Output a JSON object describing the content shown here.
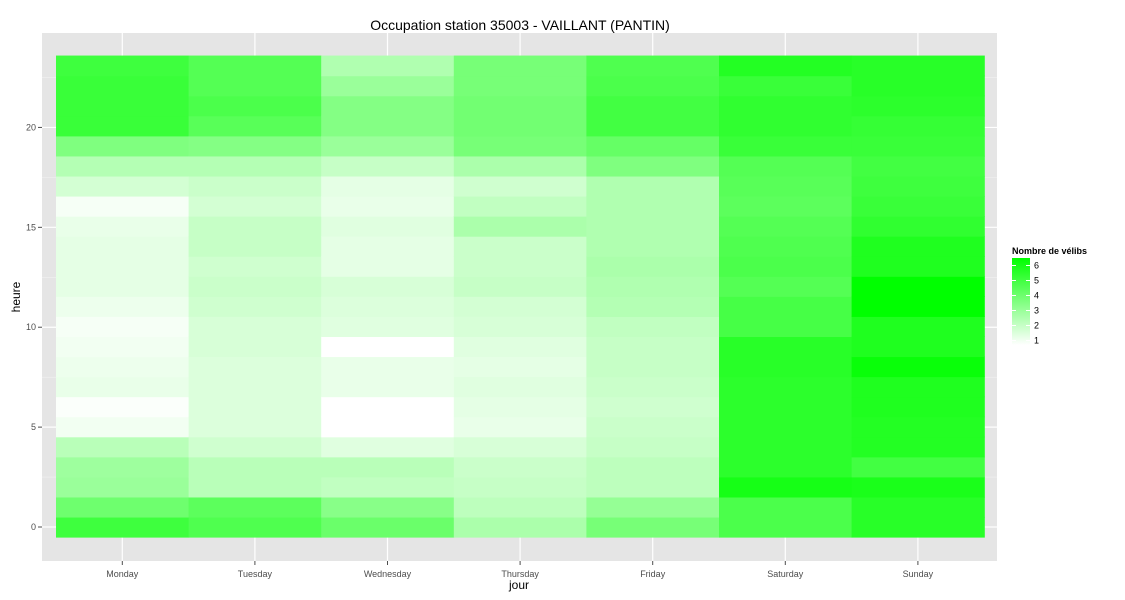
{
  "chart_data": {
    "type": "heatmap",
    "title": "Occupation station 35003 - VAILLANT (PANTIN)",
    "xlabel": "jour",
    "ylabel": "heure",
    "x_categories": [
      "Monday",
      "Tuesday",
      "Wednesday",
      "Thursday",
      "Friday",
      "Saturday",
      "Sunday"
    ],
    "y_hours": [
      0,
      1,
      2,
      3,
      4,
      5,
      6,
      7,
      8,
      9,
      10,
      11,
      12,
      13,
      14,
      15,
      16,
      17,
      18,
      19,
      20,
      21,
      22,
      23
    ],
    "y_ticks": [
      0,
      5,
      10,
      15,
      20
    ],
    "ylim": [
      -0.5,
      23.5
    ],
    "grid": true,
    "legend": {
      "title": "Nombre de vélibs",
      "position": "right",
      "min": 0.7,
      "max": 6.5,
      "ticks": [
        1,
        2,
        3,
        4,
        5,
        6
      ],
      "low_color": "#ffffff",
      "high_color": "#00ff00"
    },
    "series": [
      {
        "name": "Monday",
        "values": [
          5.1,
          4.0,
          3.0,
          2.9,
          2.3,
          1.0,
          0.8,
          1.2,
          1.1,
          1.0,
          0.9,
          1.1,
          1.3,
          1.3,
          1.3,
          1.2,
          0.9,
          1.7,
          2.4,
          3.6,
          5.2,
          5.2,
          5.2,
          5.1
        ]
      },
      {
        "name": "Tuesday",
        "values": [
          4.7,
          4.4,
          2.3,
          2.3,
          1.8,
          1.5,
          1.5,
          1.5,
          1.5,
          1.6,
          1.6,
          1.8,
          1.9,
          1.8,
          2.0,
          2.0,
          1.7,
          1.9,
          2.4,
          3.5,
          4.5,
          4.8,
          4.6,
          4.6
        ]
      },
      {
        "name": "Wednesday",
        "values": [
          4.1,
          3.4,
          2.1,
          2.3,
          1.4,
          0.7,
          0.7,
          1.2,
          1.2,
          0.7,
          1.4,
          1.5,
          1.6,
          1.3,
          1.3,
          1.4,
          1.2,
          1.3,
          2.0,
          3.0,
          3.5,
          3.5,
          3.0,
          2.5
        ]
      },
      {
        "name": "Thursday",
        "values": [
          2.6,
          2.2,
          2.0,
          1.9,
          1.6,
          1.2,
          1.3,
          1.4,
          1.3,
          1.4,
          1.6,
          1.7,
          2.0,
          1.9,
          1.9,
          2.6,
          2.1,
          1.8,
          2.6,
          3.8,
          3.9,
          3.9,
          3.8,
          3.8
        ]
      },
      {
        "name": "Friday",
        "values": [
          3.8,
          3.1,
          2.2,
          2.2,
          2.0,
          1.9,
          1.8,
          1.9,
          2.0,
          2.0,
          2.1,
          2.4,
          2.5,
          2.6,
          2.5,
          2.5,
          2.5,
          2.5,
          3.6,
          4.2,
          5.0,
          5.0,
          4.8,
          4.7
        ]
      },
      {
        "name": "Saturday",
        "values": [
          4.8,
          4.8,
          6.0,
          5.5,
          5.5,
          5.5,
          5.5,
          5.5,
          5.6,
          5.6,
          4.9,
          4.9,
          4.6,
          4.8,
          4.7,
          4.6,
          4.4,
          4.5,
          4.6,
          5.2,
          5.4,
          5.4,
          5.2,
          5.7
        ]
      },
      {
        "name": "Sunday",
        "values": [
          5.6,
          5.6,
          5.9,
          5.0,
          5.7,
          5.7,
          5.8,
          5.8,
          6.3,
          5.8,
          5.8,
          6.5,
          6.5,
          5.8,
          5.8,
          5.4,
          5.2,
          5.1,
          5.0,
          5.2,
          5.3,
          5.5,
          5.6,
          5.6
        ]
      }
    ]
  }
}
